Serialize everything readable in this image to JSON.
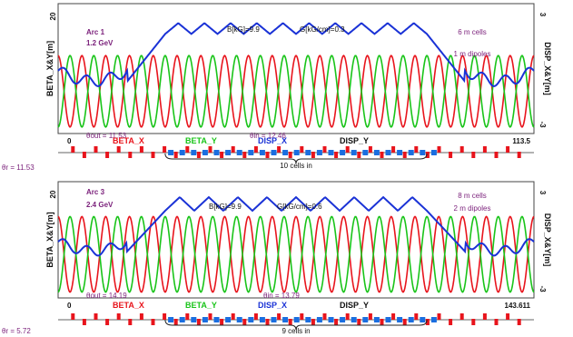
{
  "chart_data": [
    {
      "type": "line",
      "arc_label": "Arc 1",
      "energy": "1.2 GeV",
      "field_label": "B[kG]=9.9",
      "gradient_label": "G[kG/cm]=0.3",
      "cell_length": "6 m cells",
      "dipole_length": "1 m dipoles",
      "ylabel_left": "BETA_X&Y[m]",
      "ylabel_right": "DISP_X&Y[m]",
      "yleft_tick_top": "20",
      "yleft_tick_bottom": "0",
      "yright_tick_top": "3",
      "yright_tick_bottom": "-3",
      "ylim_left": [
        0,
        20
      ],
      "ylim_right": [
        -3,
        3
      ],
      "xlim": [
        0,
        113.5
      ],
      "x_start_label": "0",
      "x_end_label": "113.5",
      "theta_out_label": "θout = 11.53",
      "theta_in_label": "θin = 12.46",
      "theta_entry_label": "θr = 11.53",
      "brace_label": "10 cells in",
      "legend": [
        {
          "name": "BETA_X",
          "color": "#e8141c"
        },
        {
          "name": "BETA_Y",
          "color": "#19c419"
        },
        {
          "name": "DISP_X",
          "color": "#1a32d6"
        },
        {
          "name": "DISP_Y",
          "color": "#111111"
        }
      ],
      "n_beta_cells": 20,
      "beta_range": [
        1,
        12
      ],
      "dispersion_arc_cells": 10,
      "dispersion_peak": 2.1,
      "dispersion_valley": 1.6
    },
    {
      "type": "line",
      "arc_label": "Arc 3",
      "energy": "2.4 GeV",
      "field_label": "B[kG]=9.9",
      "gradient_label": "G[kG/cm]=0.6",
      "cell_length": "8 m cells",
      "dipole_length": "2 m dipoles",
      "ylabel_left": "BETA_X&Y[m]",
      "ylabel_right": "DISP_X&Y[m]",
      "yleft_tick_top": "20",
      "yleft_tick_bottom": "0",
      "yright_tick_top": "3",
      "yright_tick_bottom": "-3",
      "ylim_left": [
        0,
        20
      ],
      "ylim_right": [
        -3,
        3
      ],
      "xlim": [
        0,
        143.611
      ],
      "x_start_label": "0",
      "x_end_label": "143.611",
      "theta_out_label": "θout = 14.19",
      "theta_in_label": "θin = 13.79",
      "theta_entry_label": "θr = 5.72",
      "brace_label": "9 cells in",
      "legend": [
        {
          "name": "BETA_X",
          "color": "#e8141c"
        },
        {
          "name": "BETA_Y",
          "color": "#19c419"
        },
        {
          "name": "DISP_X",
          "color": "#1a32d6"
        },
        {
          "name": "DISP_Y",
          "color": "#111111"
        }
      ],
      "n_beta_cells": 20,
      "beta_range": [
        1,
        14
      ],
      "dispersion_arc_cells": 9,
      "dispersion_peak": 2.2,
      "dispersion_valley": 1.5
    }
  ]
}
